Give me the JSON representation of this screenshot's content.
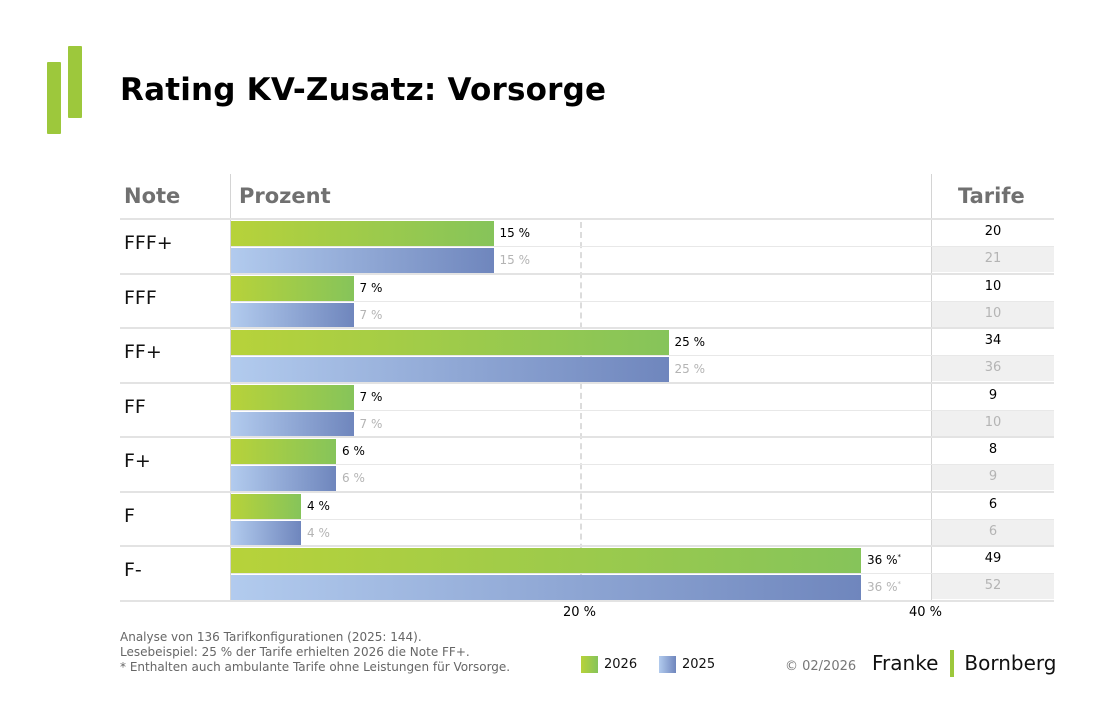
{
  "title": "Rating KV-Zusatz: Vorsorge",
  "colors": {
    "green_light": "#b7d23a",
    "green": "#86c45a",
    "blue_light": "#b2cbee",
    "blue": "#6f86bd"
  },
  "chart_data": {
    "type": "bar",
    "orientation": "horizontal",
    "title": "Rating KV-Zusatz: Vorsorge",
    "headers": {
      "note": "Note",
      "percent": "Prozent",
      "tariffs": "Tarife"
    },
    "categories": [
      "FFF+",
      "FFF",
      "FF+",
      "FF",
      "F+",
      "F",
      "F-"
    ],
    "series": [
      {
        "name": "2026",
        "values": [
          15,
          7,
          25,
          7,
          6,
          4,
          36
        ]
      },
      {
        "name": "2025",
        "values": [
          15,
          7,
          25,
          7,
          6,
          4,
          36
        ]
      }
    ],
    "value_labels": {
      "2026": [
        "15 %",
        "7 %",
        "25 %",
        "7 %",
        "6 %",
        "4 %",
        "36 %"
      ],
      "2025": [
        "15 %",
        "7 %",
        "25 %",
        "7 %",
        "6 %",
        "4 %",
        "36 %"
      ]
    },
    "footnote_marker": "*",
    "tariffs": {
      "2026": [
        "20",
        "10",
        "34",
        "9",
        "8",
        "6",
        "49"
      ],
      "2025": [
        "21",
        "10",
        "36",
        "10",
        "9",
        "6",
        "52"
      ]
    },
    "xlim": [
      0,
      40
    ],
    "xticks": [
      "20 %",
      "40 %"
    ],
    "gridline_at": [
      20
    ],
    "legend": [
      "2026",
      "2025"
    ]
  },
  "footer": {
    "line1": "Analyse von 136 Tarifkonfigurationen (2025: 144).",
    "line2": "Lesebeispiel: 25 % der Tarife erhielten 2026 die Note FF+.",
    "line3": "* Enthalten auch ambulante Tarife ohne Leistungen für Vorsorge."
  },
  "copyright": "© 02/2026",
  "brand": {
    "left": "Franke",
    "right": "Bornberg"
  }
}
